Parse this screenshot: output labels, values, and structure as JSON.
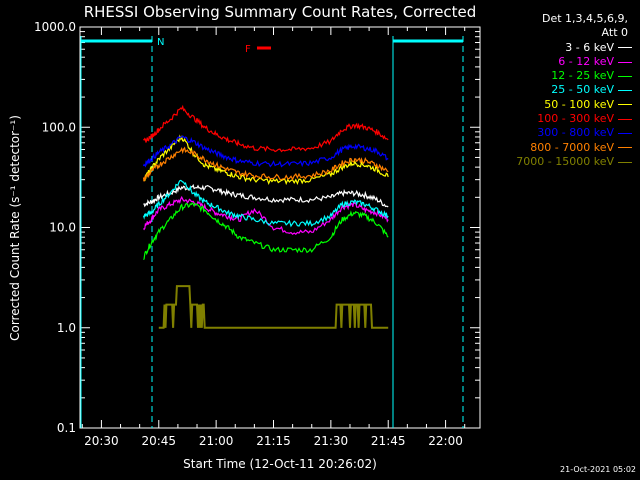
{
  "chart_data": {
    "type": "line",
    "title": "RHESSI Observing Summary Count Rates, Corrected",
    "xlabel": "Start Time (12-Oct-11 20:26:02)",
    "ylabel": "Corrected Count Rate (s⁻¹ detector⁻¹)",
    "yscale": "log",
    "ylim": [
      0.1,
      1000
    ],
    "xlim_minutes": [
      20.4,
      22.15
    ],
    "xticks": [
      "20:30",
      "20:45",
      "21:00",
      "21:15",
      "21:30",
      "21:45",
      "22:00"
    ],
    "yticks": [
      "0.1",
      "1.0",
      "10.0",
      "100.0",
      "1000.0"
    ],
    "legend_header": [
      "Det 1,3,4,5,6,9,",
      "Att 0"
    ],
    "annotations": {
      "night": "N",
      "flare": "F"
    },
    "timestamp": "21-Oct-2021 05:02",
    "x_times": [
      "20:41",
      "20:43",
      "20:45",
      "20:48",
      "20:51",
      "20:54",
      "20:57",
      "21:00",
      "21:03",
      "21:06",
      "21:10",
      "21:15",
      "21:20",
      "21:25",
      "21:30",
      "21:33",
      "21:36",
      "21:39",
      "21:42",
      "21:45"
    ],
    "series": [
      {
        "name": "3 - 6 keV",
        "color": "#ffffff",
        "values": [
          17,
          18,
          20,
          22,
          25,
          25,
          25,
          24,
          22,
          21,
          20,
          19,
          19,
          19,
          20,
          22,
          22,
          21,
          19,
          16
        ]
      },
      {
        "name": "6 - 12 keV",
        "color": "#ff00ff",
        "values": [
          10,
          12,
          15,
          17,
          19,
          18,
          16,
          14,
          13,
          12,
          15,
          10,
          9,
          9,
          12,
          16,
          17,
          15,
          14,
          12
        ]
      },
      {
        "name": "12 - 25 keV",
        "color": "#00ff00",
        "values": [
          5,
          7,
          9,
          12,
          16,
          17,
          15,
          12,
          10,
          8,
          7,
          6,
          6,
          6,
          8,
          12,
          14,
          13,
          11,
          8
        ]
      },
      {
        "name": "25 - 50 keV",
        "color": "#00ffff",
        "values": [
          13,
          14,
          17,
          22,
          30,
          22,
          18,
          16,
          14,
          13,
          12,
          11,
          11,
          11,
          13,
          17,
          18,
          17,
          15,
          13
        ]
      },
      {
        "name": "50 - 100 keV",
        "color": "#ffff00",
        "values": [
          30,
          38,
          48,
          62,
          80,
          55,
          42,
          38,
          35,
          32,
          30,
          29,
          29,
          30,
          34,
          40,
          44,
          42,
          38,
          32
        ]
      },
      {
        "name": "100 - 300 keV",
        "color": "#ff0000",
        "values": [
          72,
          80,
          95,
          120,
          155,
          125,
          100,
          85,
          75,
          68,
          62,
          60,
          60,
          62,
          72,
          95,
          105,
          100,
          90,
          75
        ]
      },
      {
        "name": "300 - 800 keV",
        "color": "#0000ff",
        "values": [
          42,
          48,
          56,
          66,
          80,
          72,
          62,
          55,
          50,
          46,
          44,
          43,
          43,
          44,
          50,
          60,
          65,
          62,
          58,
          48
        ]
      },
      {
        "name": "800 - 7000 keV",
        "color": "#ff8000",
        "values": [
          30,
          36,
          42,
          50,
          60,
          55,
          48,
          42,
          38,
          35,
          33,
          32,
          32,
          33,
          37,
          44,
          48,
          46,
          42,
          36
        ]
      },
      {
        "name": "7000 - 15000 keV",
        "color": "#808000",
        "values": [
          null,
          null,
          1.0,
          1.7,
          2.6,
          2.0,
          1.3,
          1.0,
          null,
          null,
          null,
          null,
          null,
          1.0,
          1.0,
          1.7,
          1.8,
          1.7,
          1.0,
          1.0
        ]
      }
    ]
  }
}
